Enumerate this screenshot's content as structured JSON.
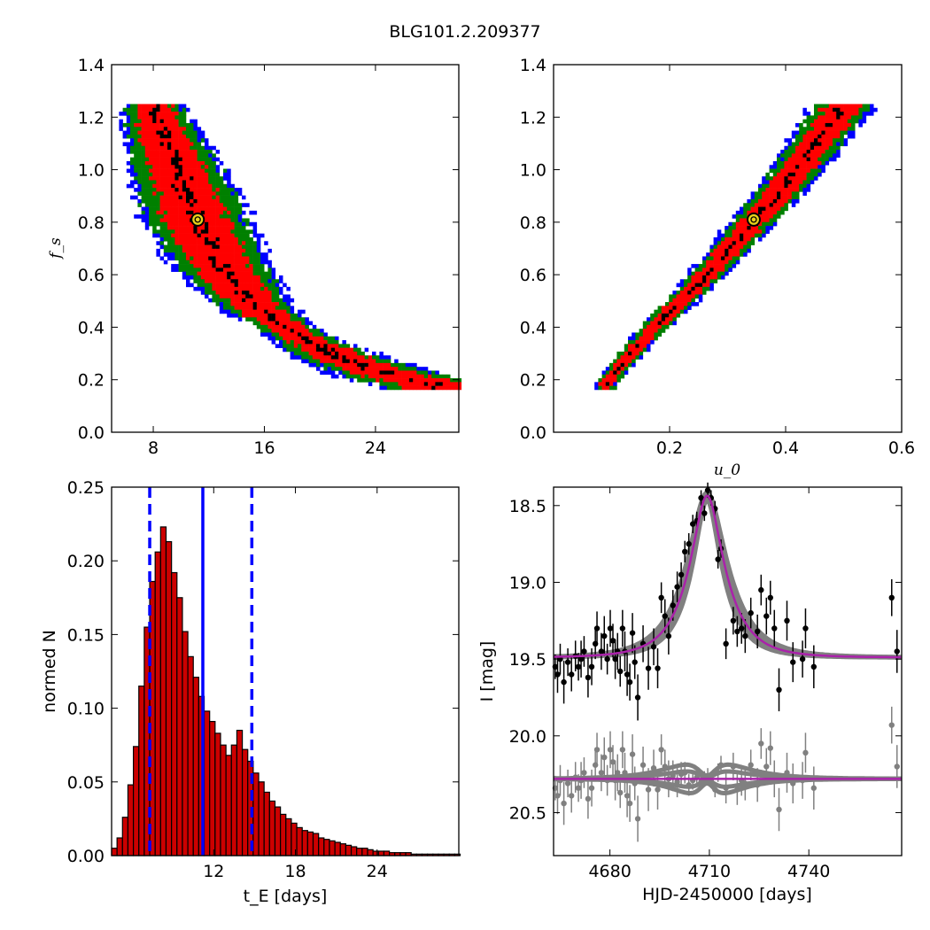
{
  "figure": {
    "title": "BLG101.2.209377"
  },
  "chart_data": [
    {
      "type": "heatmap",
      "panel": "top-left",
      "xlabel": "",
      "ylabel": "f_s",
      "xlim": [
        5,
        30
      ],
      "ylim": [
        0.0,
        1.4
      ],
      "xticks": [
        "8",
        "16",
        "24"
      ],
      "yticks": [
        "0.0",
        "0.2",
        "0.4",
        "0.6",
        "0.8",
        "1.0",
        "1.2",
        "1.4"
      ],
      "levels": [
        {
          "color": "#0000ff",
          "label": "outer"
        },
        {
          "color": "#008000",
          "label": "2 sigma"
        },
        {
          "color": "#ff0000",
          "label": "1 sigma"
        },
        {
          "color": "#000000",
          "label": "best"
        }
      ],
      "ridge": [
        [
          8.0,
          1.25
        ],
        [
          9.0,
          1.1
        ],
        [
          10.2,
          0.95
        ],
        [
          11.2,
          0.81
        ],
        [
          13.0,
          0.63
        ],
        [
          15.5,
          0.48
        ],
        [
          18.5,
          0.37
        ],
        [
          22.0,
          0.28
        ],
        [
          26.0,
          0.21
        ],
        [
          28.5,
          0.19
        ]
      ],
      "best_fit": {
        "x": 11.2,
        "y": 0.81
      }
    },
    {
      "type": "heatmap",
      "panel": "top-right",
      "xlabel": "u_0",
      "ylabel": "",
      "xlim": [
        0.0,
        0.6
      ],
      "ylim": [
        0.0,
        1.4
      ],
      "xticks": [
        "0.2",
        "0.4",
        "0.6"
      ],
      "yticks": [
        "0.0",
        "0.2",
        "0.4",
        "0.6",
        "0.8",
        "1.0",
        "1.2",
        "1.4"
      ],
      "ridge": [
        [
          0.09,
          0.19
        ],
        [
          0.13,
          0.3
        ],
        [
          0.18,
          0.42
        ],
        [
          0.24,
          0.55
        ],
        [
          0.29,
          0.67
        ],
        [
          0.345,
          0.81
        ],
        [
          0.4,
          0.95
        ],
        [
          0.45,
          1.1
        ],
        [
          0.5,
          1.25
        ]
      ],
      "best_fit": {
        "x": 0.345,
        "y": 0.81
      }
    },
    {
      "type": "bar",
      "panel": "bottom-left",
      "xlabel": "t_E [days]",
      "ylabel": "normed N",
      "xlim": [
        4.5,
        30
      ],
      "ylim": [
        0.0,
        0.25
      ],
      "xticks": [
        "12",
        "18",
        "24"
      ],
      "yticks": [
        "0.00",
        "0.05",
        "0.10",
        "0.15",
        "0.20",
        "0.25"
      ],
      "bin_start": 4.5,
      "bin_width": 0.4,
      "values": [
        0.005,
        0.012,
        0.026,
        0.048,
        0.074,
        0.115,
        0.155,
        0.186,
        0.206,
        0.223,
        0.213,
        0.192,
        0.175,
        0.152,
        0.135,
        0.121,
        0.108,
        0.098,
        0.091,
        0.083,
        0.075,
        0.068,
        0.075,
        0.085,
        0.072,
        0.064,
        0.056,
        0.05,
        0.043,
        0.037,
        0.033,
        0.028,
        0.025,
        0.022,
        0.019,
        0.017,
        0.016,
        0.015,
        0.012,
        0.011,
        0.01,
        0.009,
        0.008,
        0.007,
        0.006,
        0.005,
        0.005,
        0.004,
        0.003,
        0.003,
        0.003,
        0.002,
        0.002,
        0.002,
        0.002,
        0.001,
        0.001,
        0.001,
        0.001,
        0.001,
        0.001,
        0.001,
        0.001,
        0.001
      ],
      "bar_color": "#cc0000",
      "median": 11.2,
      "lower": 7.3,
      "upper": 14.8,
      "line_color": "#0000ff"
    },
    {
      "type": "scatter",
      "panel": "bottom-right",
      "xlabel": "HJD-2450000 [days]",
      "ylabel": "I [mag]",
      "xlim": [
        4663,
        4768
      ],
      "ylim": [
        20.78,
        18.38
      ],
      "xticks": [
        "4680",
        "4710",
        "4740"
      ],
      "yticks": [
        "18.5",
        "19.0",
        "19.5",
        "20.0",
        "20.5"
      ],
      "model": {
        "t0": 4709.3,
        "tE": 11.2,
        "u0": 0.345,
        "fs": 0.81,
        "baseline": 19.49,
        "color": "#aa22aa"
      },
      "residual_baseline": 20.28,
      "series": [
        {
          "name": "data",
          "color": "#000000",
          "x": [
            4663.5,
            4664.2,
            4665.0,
            4666.1,
            4667.3,
            4668.4,
            4669.6,
            4670.5,
            4671.3,
            4672.2,
            4673.4,
            4674.5,
            4675.6,
            4676.1,
            4677.4,
            4678.3,
            4679.2,
            4680.1,
            4680.9,
            4681.6,
            4682.3,
            4683.1,
            4683.8,
            4684.5,
            4685.2,
            4686.0,
            4686.8,
            4687.5,
            4688.4,
            4690.0,
            4691.6,
            4693.2,
            4694.4,
            4695.5,
            4696.6,
            4697.7,
            4699.0,
            4700.3,
            4701.5,
            4702.6,
            4703.8,
            4705.0,
            4706.2,
            4707.5,
            4708.5,
            4709.5,
            4710.5,
            4711.7,
            4712.6,
            4713.5,
            4715.0,
            4717.2,
            4718.4,
            4719.7,
            4720.8,
            4722.5,
            4724.5,
            4725.6,
            4727.2,
            4728.4,
            4729.6,
            4731.0,
            4733.4,
            4735.2,
            4738.1,
            4739.0,
            4741.5,
            4765.0,
            4766.6
          ],
          "y": [
            19.55,
            19.6,
            19.5,
            19.65,
            19.52,
            19.6,
            19.48,
            19.55,
            19.5,
            19.45,
            19.62,
            19.55,
            19.4,
            19.3,
            19.45,
            19.35,
            19.5,
            19.3,
            19.38,
            19.5,
            19.45,
            19.58,
            19.3,
            19.45,
            19.6,
            19.65,
            19.33,
            19.52,
            19.75,
            19.4,
            19.56,
            19.42,
            19.56,
            19.1,
            19.22,
            19.35,
            19.15,
            19.03,
            18.95,
            18.8,
            18.75,
            18.62,
            18.6,
            18.45,
            18.55,
            18.4,
            18.45,
            18.52,
            18.85,
            18.78,
            19.4,
            19.25,
            19.32,
            19.3,
            19.35,
            19.2,
            19.32,
            19.05,
            19.22,
            19.1,
            19.3,
            19.7,
            19.25,
            19.52,
            19.5,
            19.3,
            19.55,
            19.1,
            19.45
          ],
          "err": [
            0.08,
            0.12,
            0.1,
            0.14,
            0.09,
            0.11,
            0.1,
            0.09,
            0.12,
            0.1,
            0.13,
            0.12,
            0.1,
            0.11,
            0.12,
            0.13,
            0.1,
            0.12,
            0.11,
            0.13,
            0.12,
            0.1,
            0.12,
            0.13,
            0.14,
            0.12,
            0.13,
            0.11,
            0.15,
            0.12,
            0.14,
            0.12,
            0.13,
            0.1,
            0.11,
            0.12,
            0.1,
            0.1,
            0.08,
            0.07,
            0.07,
            0.06,
            0.06,
            0.05,
            0.05,
            0.05,
            0.05,
            0.05,
            0.06,
            0.06,
            0.1,
            0.09,
            0.1,
            0.1,
            0.11,
            0.1,
            0.11,
            0.1,
            0.12,
            0.11,
            0.12,
            0.14,
            0.13,
            0.13,
            0.12,
            0.13,
            0.14,
            0.12,
            0.14
          ]
        },
        {
          "name": "residuals",
          "color": "#808080",
          "x": [
            4663.5,
            4664.2,
            4665.0,
            4666.1,
            4667.3,
            4668.4,
            4669.6,
            4670.5,
            4671.3,
            4672.2,
            4673.4,
            4674.5,
            4675.6,
            4676.1,
            4677.4,
            4678.3,
            4679.2,
            4680.1,
            4680.9,
            4681.6,
            4682.3,
            4683.1,
            4683.8,
            4684.5,
            4685.2,
            4686.0,
            4686.8,
            4687.5,
            4688.4,
            4690.0,
            4691.6,
            4693.2,
            4694.4,
            4695.5,
            4696.6,
            4697.7,
            4699.0,
            4700.3,
            4701.5,
            4702.6,
            4703.8,
            4705.0,
            4706.2,
            4707.5,
            4708.5,
            4709.5,
            4710.5,
            4711.7,
            4712.6,
            4713.5,
            4715.0,
            4717.2,
            4718.4,
            4719.7,
            4720.8,
            4722.5,
            4724.5,
            4725.6,
            4727.2,
            4728.4,
            4729.6,
            4731.0,
            4733.4,
            4735.2,
            4738.1,
            4739.0,
            4741.5,
            4765.0,
            4766.6
          ],
          "y": [
            20.34,
            20.39,
            20.29,
            20.44,
            20.31,
            20.39,
            20.27,
            20.34,
            20.29,
            20.24,
            20.41,
            20.34,
            20.19,
            20.09,
            20.24,
            20.14,
            20.29,
            20.09,
            20.17,
            20.29,
            20.24,
            20.37,
            20.09,
            20.24,
            20.39,
            20.44,
            20.12,
            20.31,
            20.54,
            20.19,
            20.35,
            20.21,
            20.35,
            20.09,
            20.2,
            20.28,
            20.26,
            20.3,
            20.25,
            20.24,
            20.32,
            20.29,
            20.27,
            20.3,
            20.28,
            20.26,
            20.29,
            20.35,
            20.24,
            20.19,
            20.34,
            20.2,
            20.35,
            20.29,
            20.31,
            20.19,
            20.32,
            20.05,
            20.2,
            20.08,
            20.28,
            20.48,
            20.24,
            20.31,
            20.29,
            20.11,
            20.34,
            19.93,
            20.2
          ],
          "err": [
            0.08,
            0.12,
            0.1,
            0.14,
            0.09,
            0.11,
            0.1,
            0.09,
            0.12,
            0.1,
            0.13,
            0.12,
            0.1,
            0.11,
            0.12,
            0.13,
            0.1,
            0.12,
            0.11,
            0.13,
            0.12,
            0.1,
            0.12,
            0.13,
            0.14,
            0.12,
            0.13,
            0.11,
            0.15,
            0.12,
            0.14,
            0.12,
            0.13,
            0.1,
            0.11,
            0.12,
            0.1,
            0.1,
            0.08,
            0.07,
            0.07,
            0.06,
            0.06,
            0.05,
            0.05,
            0.05,
            0.05,
            0.05,
            0.06,
            0.06,
            0.1,
            0.09,
            0.1,
            0.1,
            0.11,
            0.1,
            0.11,
            0.1,
            0.12,
            0.11,
            0.12,
            0.14,
            0.13,
            0.13,
            0.12,
            0.13,
            0.14,
            0.12,
            0.14
          ]
        }
      ]
    }
  ]
}
